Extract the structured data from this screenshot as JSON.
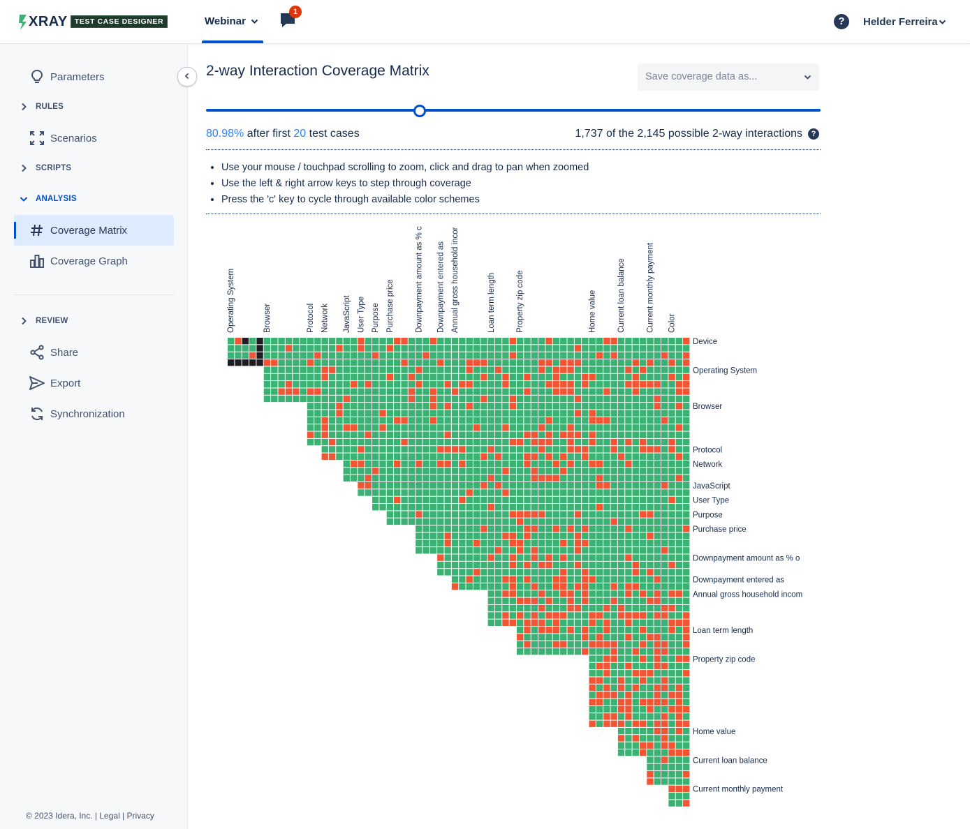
{
  "header": {
    "logo_text": "XRAY",
    "logo_tag": "TEST CASE DESIGNER",
    "project": "Webinar",
    "notifications_count": "1",
    "help_icon": "help-circle-icon",
    "user_name": "Helder Ferreira"
  },
  "sidebar": {
    "items": [
      {
        "type": "item",
        "label": "Parameters",
        "icon": "lightbulb-icon"
      },
      {
        "type": "section",
        "label": "RULES",
        "icon": "chevron-right-icon"
      },
      {
        "type": "item",
        "label": "Scenarios",
        "icon": "expand-icon"
      },
      {
        "type": "section",
        "label": "SCRIPTS",
        "icon": "chevron-right-icon"
      },
      {
        "type": "section",
        "label": "ANALYSIS",
        "icon": "chevron-down-icon"
      },
      {
        "type": "item",
        "label": "Coverage Matrix",
        "icon": "hash-icon",
        "active": true
      },
      {
        "type": "item",
        "label": "Coverage Graph",
        "icon": "bar-chart-icon"
      },
      {
        "type": "section",
        "label": "REVIEW",
        "icon": "chevron-right-icon"
      },
      {
        "type": "item",
        "label": "Share",
        "icon": "share-icon"
      },
      {
        "type": "item",
        "label": "Export",
        "icon": "send-icon"
      },
      {
        "type": "item",
        "label": "Synchronization",
        "icon": "sync-icon"
      }
    ],
    "footer": {
      "copyright": "© 2023 Idera, Inc.",
      "legal": "Legal",
      "privacy": "Privacy"
    }
  },
  "main": {
    "title": "2-way Interaction Coverage Matrix",
    "save_placeholder": "Save coverage data as...",
    "slider_fraction": 0.348,
    "coverage_percent": "80.98%",
    "after_first": "after first",
    "test_cases_count": "20",
    "test_cases_word": "test cases",
    "interactions_text": "1,737 of the 2,145 possible 2-way interactions",
    "tips": [
      "Use your mouse / touchpad scrolling to zoom, click and drag to pan when zoomed",
      "Use the left & right arrow keys to step through coverage",
      "Press the 'c' key to cycle through available color schemes"
    ]
  },
  "matrix": {
    "colors": {
      "covered": "#3bb273",
      "uncovered": "#f25533",
      "self": "#1d1d22",
      "grid": "#ffffff"
    },
    "column_labels": [
      "Operating System",
      "Browser",
      "Protocol",
      "Network",
      "JavaScript",
      "User Type",
      "Purpose",
      "Purchase price",
      "Downpayment amount as % c",
      "Downpayment entered as",
      "Annual gross household incor",
      "Loan term length",
      "Property zip code",
      "Home value",
      "Current loan balance",
      "Current monthly payment",
      "Color"
    ],
    "row_labels": [
      "Device",
      "Operating System",
      "Browser",
      "Protocol",
      "Network",
      "JavaScript",
      "User Type",
      "Purpose",
      "Purchase price",
      "Downpayment amount as % o",
      "Downpayment entered as",
      "Annual gross household incom",
      "Loan term length",
      "Property zip code",
      "Home value",
      "Current loan balance",
      "Current monthly payment"
    ],
    "value_counts": [
      4,
      5,
      6,
      2,
      3,
      2,
      2,
      2,
      4,
      3,
      2,
      5,
      4,
      10,
      4,
      4,
      3,
      3
    ]
  }
}
